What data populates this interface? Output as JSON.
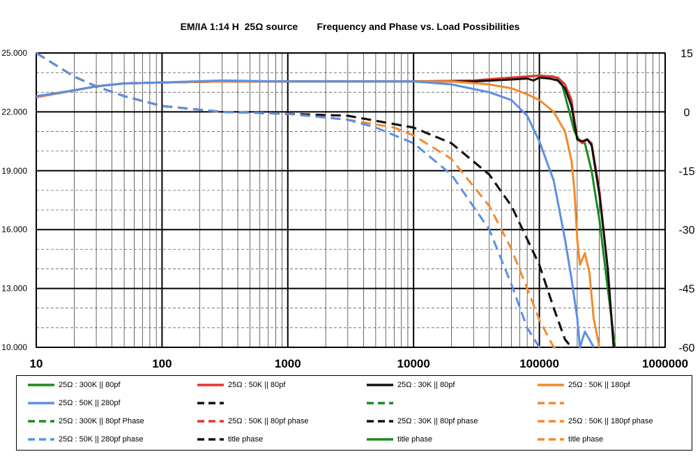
{
  "chart_data": {
    "type": "line",
    "title": "EM/IA 1:14 H  25Ω source       Frequency and Phase vs. Load Possibilities",
    "xscale": "log",
    "xlim": [
      10,
      1000000
    ],
    "ylim_left": [
      10,
      25
    ],
    "ylim_right": [
      -60,
      15
    ],
    "x_ticks": [
      "10",
      "100",
      "1000",
      "10000",
      "100000",
      "1000000"
    ],
    "y_left_ticks": [
      "25.000",
      "22.000",
      "19.000",
      "16.000",
      "13.000",
      "10.000"
    ],
    "y_right_ticks": [
      "15",
      "0",
      "-15",
      "-30",
      "-45",
      "-60"
    ],
    "grid": true,
    "legend_position": "bottom",
    "colors": {
      "green": "#1a8a1a",
      "red": "#e8342a",
      "black": "#111111",
      "orange": "#f4892c",
      "blue": "#5b8fe6"
    },
    "series": [
      {
        "name": "25Ω : 300K || 80pf",
        "color": "green",
        "style": "solid",
        "axis": "left",
        "x": [
          10,
          20,
          30,
          50,
          100,
          300,
          1000,
          10000,
          30000,
          60000,
          100000,
          130000,
          150000,
          170000,
          190000,
          210000,
          230000,
          260000,
          300000,
          350000,
          400000
        ],
        "y": [
          22.75,
          23.1,
          23.3,
          23.45,
          23.5,
          23.55,
          23.55,
          23.55,
          23.6,
          23.75,
          23.85,
          23.8,
          23.5,
          22.2,
          21.0,
          20.5,
          20.4,
          19.0,
          16.5,
          13.0,
          10.0
        ]
      },
      {
        "name": "25Ω : 50K || 80pf",
        "color": "red",
        "style": "solid",
        "axis": "left",
        "x": [
          10,
          20,
          30,
          50,
          100,
          300,
          1000,
          10000,
          30000,
          60000,
          80000,
          100000,
          120000,
          140000,
          160000,
          180000,
          200000,
          220000,
          240000,
          260000,
          300000,
          350000,
          390000
        ],
        "y": [
          22.75,
          23.1,
          23.3,
          23.45,
          23.5,
          23.55,
          23.55,
          23.55,
          23.6,
          23.75,
          23.8,
          23.85,
          23.8,
          23.75,
          23.4,
          22.6,
          20.6,
          20.4,
          20.6,
          20.4,
          18.0,
          14.0,
          10.0
        ]
      },
      {
        "name": "25Ω : 30K || 80pf",
        "color": "black",
        "style": "solid",
        "axis": "left",
        "x": [
          10,
          20,
          30,
          50,
          100,
          300,
          1000,
          10000,
          30000,
          60000,
          80000,
          90000,
          100000,
          120000,
          140000,
          160000,
          180000,
          200000,
          220000,
          240000,
          260000,
          300000,
          350000,
          390000
        ],
        "y": [
          22.75,
          23.1,
          23.3,
          23.45,
          23.5,
          23.55,
          23.55,
          23.55,
          23.55,
          23.65,
          23.7,
          23.6,
          23.75,
          23.7,
          23.6,
          23.2,
          22.3,
          20.6,
          20.5,
          20.6,
          20.3,
          17.8,
          14.0,
          10.0
        ]
      },
      {
        "name": "25Ω : 50K || 180pf",
        "color": "orange",
        "style": "solid",
        "axis": "left",
        "x": [
          10,
          20,
          30,
          50,
          100,
          300,
          1000,
          10000,
          20000,
          40000,
          60000,
          80000,
          100000,
          130000,
          160000,
          180000,
          190000,
          200000,
          210000,
          230000,
          250000,
          270000,
          300000
        ],
        "y": [
          22.75,
          23.1,
          23.3,
          23.45,
          23.5,
          23.55,
          23.55,
          23.55,
          23.55,
          23.4,
          23.2,
          22.9,
          22.6,
          22.0,
          21.0,
          19.5,
          18.0,
          15.5,
          14.2,
          14.8,
          13.8,
          11.5,
          10.0
        ]
      },
      {
        "name": "25Ω : 50K || 280pf",
        "color": "blue",
        "style": "solid",
        "axis": "left",
        "x": [
          10,
          20,
          30,
          50,
          100,
          300,
          1000,
          10000,
          20000,
          40000,
          60000,
          80000,
          100000,
          130000,
          160000,
          180000,
          200000,
          210000,
          230000,
          250000,
          270000
        ],
        "y": [
          22.8,
          23.1,
          23.3,
          23.45,
          23.5,
          23.6,
          23.55,
          23.55,
          23.4,
          23.0,
          22.6,
          21.8,
          20.5,
          18.5,
          15.5,
          13.5,
          11.5,
          10.0,
          10.8,
          10.4,
          10.0
        ]
      },
      {
        "name": "25Ω : 300K || 80pf Phase",
        "color": "green",
        "style": "dashed",
        "axis": "right",
        "x": [
          10,
          20,
          30,
          50,
          100,
          300,
          1000,
          3000,
          10000,
          20000,
          40000,
          60000,
          100000,
          130000,
          160000,
          180000
        ],
        "y": [
          15,
          9,
          6.5,
          4,
          1.5,
          0,
          -0.5,
          -1,
          -4,
          -8,
          -16,
          -24,
          -39,
          -50,
          -58,
          -62
        ]
      },
      {
        "name": "25Ω : 50K || 80pf phase",
        "color": "red",
        "style": "dashed",
        "axis": "right",
        "x": [
          10,
          20,
          30,
          50,
          100,
          300,
          1000,
          3000,
          10000,
          20000,
          40000,
          60000,
          100000,
          130000,
          160000,
          180000
        ],
        "y": [
          15,
          9,
          6.5,
          4,
          1.5,
          0,
          -0.5,
          -1,
          -4,
          -8,
          -16,
          -24,
          -39,
          -50,
          -58,
          -62
        ]
      },
      {
        "name": "25Ω : 30K || 80pf phase",
        "color": "black",
        "style": "dashed",
        "axis": "right",
        "x": [
          10,
          20,
          30,
          50,
          100,
          300,
          1000,
          3000,
          10000,
          20000,
          40000,
          60000,
          100000,
          130000,
          160000,
          180000
        ],
        "y": [
          15,
          9,
          6.5,
          4,
          1.5,
          0,
          -0.5,
          -1,
          -4,
          -8,
          -16,
          -24,
          -39,
          -50,
          -58,
          -62
        ]
      },
      {
        "name": "25Ω : 50K || 180pf phase",
        "color": "orange",
        "style": "dashed",
        "axis": "right",
        "x": [
          10,
          20,
          30,
          50,
          100,
          300,
          1000,
          3000,
          7000,
          10000,
          20000,
          40000,
          60000,
          80000,
          100000,
          130000,
          150000
        ],
        "y": [
          15,
          9,
          6.5,
          4,
          1.5,
          0,
          -0.5,
          -2,
          -4,
          -6,
          -12,
          -24,
          -35,
          -45,
          -53,
          -60,
          -62
        ]
      },
      {
        "name": "25Ω : 50K || 280pf phase",
        "color": "blue",
        "style": "dashed",
        "axis": "right",
        "x": [
          10,
          20,
          30,
          50,
          100,
          300,
          1000,
          3000,
          5000,
          10000,
          20000,
          40000,
          60000,
          80000,
          100000,
          110000
        ],
        "y": [
          15,
          9,
          6.5,
          4,
          1.5,
          0,
          -0.5,
          -2,
          -4,
          -8,
          -16,
          -30,
          -44,
          -55,
          -61,
          -63
        ]
      }
    ]
  },
  "legend": {
    "items": [
      {
        "label": "25Ω : 300K || 80pf",
        "color": "green",
        "style": "solid"
      },
      {
        "label": "25Ω : 50K || 80pf",
        "color": "red",
        "style": "solid"
      },
      {
        "label": "25Ω : 30K || 80pf",
        "color": "black",
        "style": "solid"
      },
      {
        "label": "25Ω : 50K || 180pf",
        "color": "orange",
        "style": "solid"
      },
      {
        "label": "25Ω : 50K || 280pf",
        "color": "blue",
        "style": "solid"
      },
      {
        "label": "",
        "color": "black",
        "style": "dashed"
      },
      {
        "label": "",
        "color": "green",
        "style": "dashed"
      },
      {
        "label": "",
        "color": "orange",
        "style": "dashed"
      },
      {
        "label": "25Ω : 300K || 80pf Phase",
        "color": "green",
        "style": "dashed"
      },
      {
        "label": "25Ω : 50K || 80pf phase",
        "color": "red",
        "style": "dashed"
      },
      {
        "label": "25Ω : 30K || 80pf phase",
        "color": "black",
        "style": "dashed"
      },
      {
        "label": "25Ω : 50K || 180pf phase",
        "color": "orange",
        "style": "dashed"
      },
      {
        "label": "25Ω : 50K || 280pf phase",
        "color": "blue",
        "style": "dashed"
      },
      {
        "label": "title phase",
        "color": "black",
        "style": "dashed"
      },
      {
        "label": "title phase",
        "color": "green",
        "style": "solid"
      },
      {
        "label": "title phase",
        "color": "orange",
        "style": "dashed"
      }
    ]
  }
}
